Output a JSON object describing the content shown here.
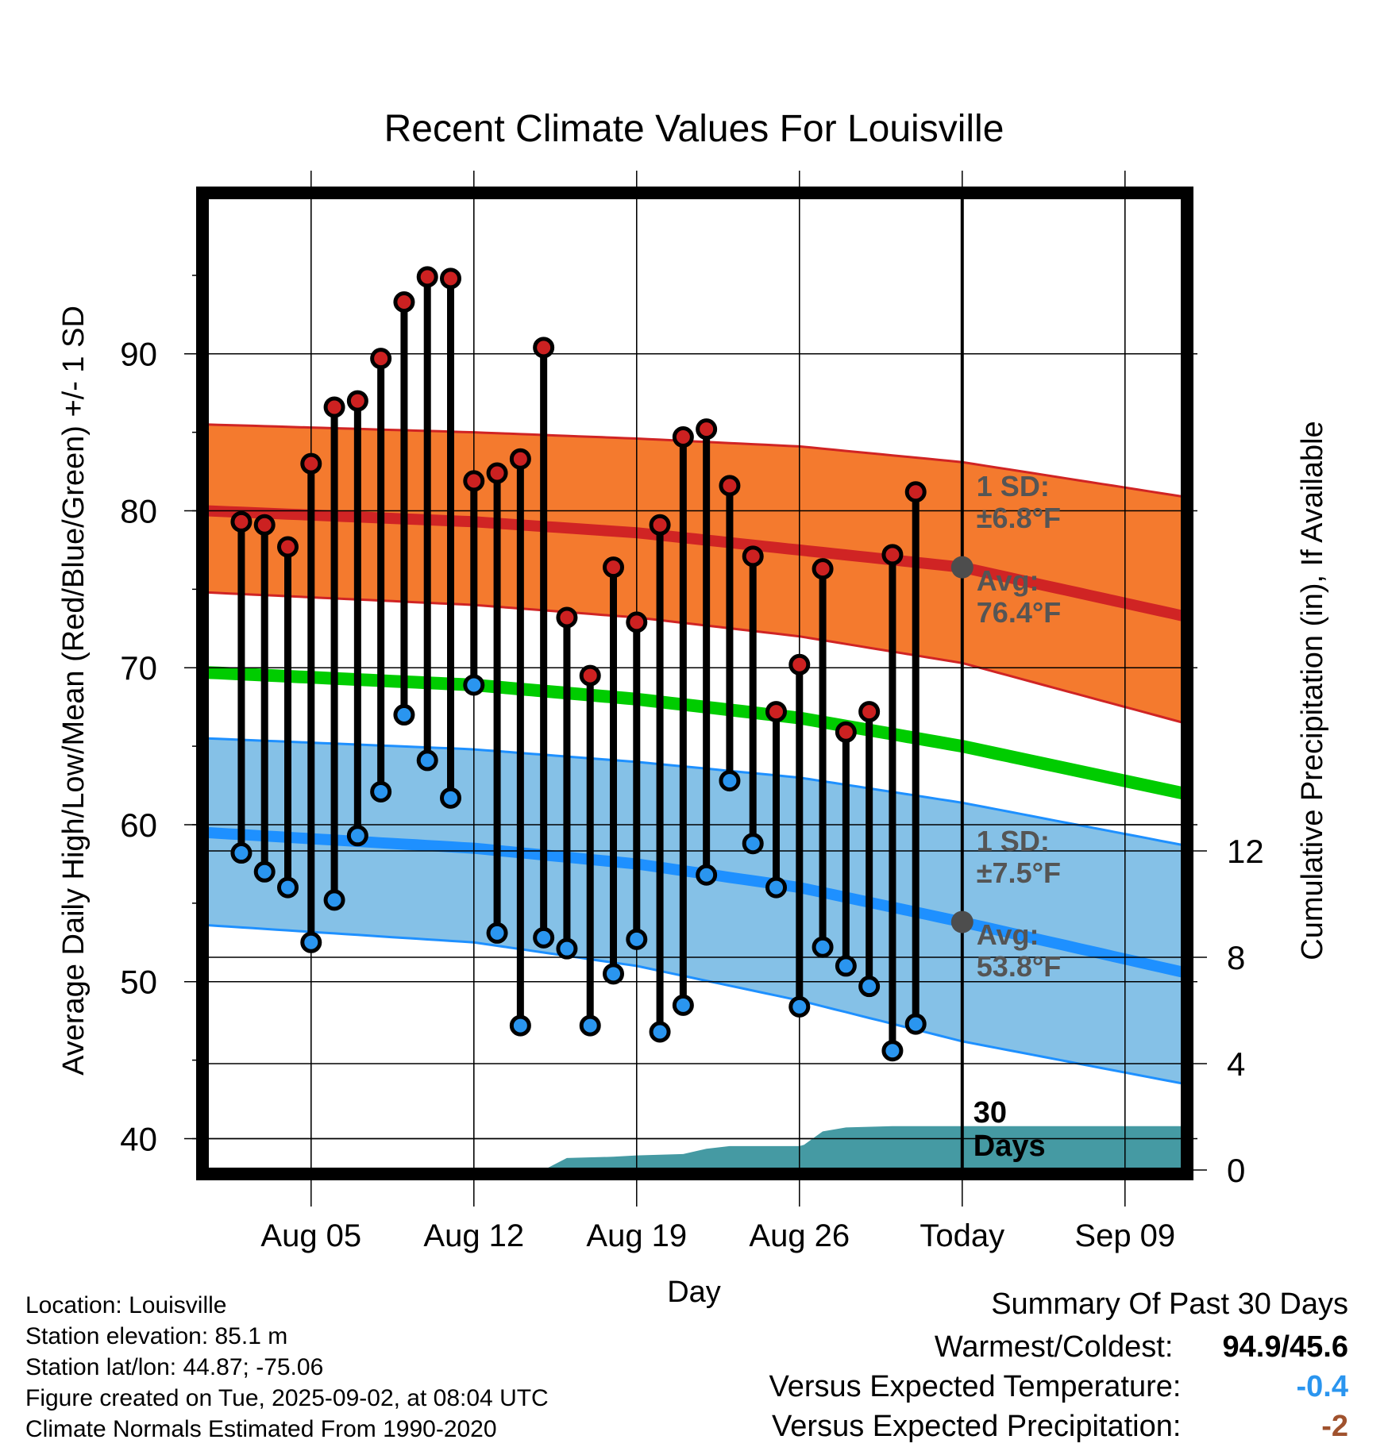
{
  "chart_data": {
    "type": "line",
    "title": "Recent Climate Values For Louisville",
    "xlabel": "Day",
    "ylabel": "Average Daily High/Low/Mean (Red/Blue/Green) +/- 1 SD",
    "y2label": "Cumulative Precipitation (in), If Available",
    "ylim": [
      38,
      100
    ],
    "y2lim": [
      0,
      36.6
    ],
    "x_range_days": [
      -32.5,
      9.5
    ],
    "x_ticks": [
      {
        "day": -28,
        "label": "Aug 05"
      },
      {
        "day": -21,
        "label": "Aug 12"
      },
      {
        "day": -14,
        "label": "Aug 19"
      },
      {
        "day": -7,
        "label": "Aug 26"
      },
      {
        "day": 0,
        "label": "Today"
      },
      {
        "day": 7,
        "label": "Sep 09"
      }
    ],
    "y_ticks": [
      40,
      50,
      60,
      70,
      80,
      90
    ],
    "y2_ticks": [
      0,
      4,
      8,
      12
    ],
    "grid": true,
    "today_line_label": [
      "30",
      "Days"
    ],
    "normals": {
      "high_mean": [
        [
          -32.5,
          80.0
        ],
        [
          -21,
          79.3
        ],
        [
          -14,
          78.6
        ],
        [
          -7,
          77.5
        ],
        [
          0,
          76.4
        ],
        [
          9.5,
          73.3
        ]
      ],
      "high_upper": [
        [
          -32.5,
          85.5
        ],
        [
          -21,
          85.0
        ],
        [
          -14,
          84.6
        ],
        [
          -7,
          84.1
        ],
        [
          0,
          83.1
        ],
        [
          9.5,
          80.9
        ]
      ],
      "high_lower": [
        [
          -32.5,
          74.8
        ],
        [
          -21,
          74.0
        ],
        [
          -14,
          73.2
        ],
        [
          -7,
          72.0
        ],
        [
          0,
          70.3
        ],
        [
          9.5,
          66.5
        ]
      ],
      "mean": [
        [
          -32.5,
          69.7
        ],
        [
          -21,
          68.9
        ],
        [
          -14,
          68.0
        ],
        [
          -7,
          66.8
        ],
        [
          0,
          65.0
        ],
        [
          9.5,
          62.0
        ]
      ],
      "low_mean": [
        [
          -32.5,
          59.5
        ],
        [
          -21,
          58.5
        ],
        [
          -14,
          57.5
        ],
        [
          -7,
          56.0
        ],
        [
          0,
          53.8
        ],
        [
          9.5,
          50.6
        ]
      ],
      "low_upper": [
        [
          -32.5,
          65.5
        ],
        [
          -21,
          64.8
        ],
        [
          -14,
          64.0
        ],
        [
          -7,
          63.0
        ],
        [
          0,
          61.4
        ],
        [
          9.5,
          58.7
        ]
      ],
      "low_lower": [
        [
          -32.5,
          53.6
        ],
        [
          -21,
          52.5
        ],
        [
          -14,
          51.0
        ],
        [
          -7,
          48.8
        ],
        [
          0,
          46.2
        ],
        [
          9.5,
          43.5
        ]
      ]
    },
    "high_sd_label": [
      "1 SD:",
      "±6.8°F"
    ],
    "high_avg_label": [
      "Avg:",
      "76.4°F"
    ],
    "low_sd_label": [
      "1 SD:",
      "±7.5°F"
    ],
    "low_avg_label": [
      "Avg:",
      "53.8°F"
    ],
    "today_high_avg": 76.4,
    "today_low_avg": 53.8,
    "daily": [
      {
        "day": -31,
        "high": 79.3,
        "low": 58.2
      },
      {
        "day": -30,
        "high": 79.1,
        "low": 57.0
      },
      {
        "day": -29,
        "high": 77.7,
        "low": 56.0
      },
      {
        "day": -28,
        "high": 83.0,
        "low": 52.5
      },
      {
        "day": -27,
        "high": 86.6,
        "low": 55.2
      },
      {
        "day": -26,
        "high": 87.0,
        "low": 59.3
      },
      {
        "day": -25,
        "high": 89.7,
        "low": 62.1
      },
      {
        "day": -24,
        "high": 93.3,
        "low": 67.0
      },
      {
        "day": -23,
        "high": 94.9,
        "low": 64.1
      },
      {
        "day": -22,
        "high": 94.8,
        "low": 61.7
      },
      {
        "day": -21,
        "high": 81.9,
        "low": 68.9
      },
      {
        "day": -20,
        "high": 82.4,
        "low": 53.1
      },
      {
        "day": -19,
        "high": 83.3,
        "low": 47.2
      },
      {
        "day": -18,
        "high": 90.4,
        "low": 52.8
      },
      {
        "day": -17,
        "high": 73.2,
        "low": 52.1
      },
      {
        "day": -16,
        "high": 69.5,
        "low": 47.2
      },
      {
        "day": -15,
        "high": 76.4,
        "low": 50.5
      },
      {
        "day": -14,
        "high": 72.9,
        "low": 52.7
      },
      {
        "day": -13,
        "high": 79.1,
        "low": 46.8
      },
      {
        "day": -12,
        "high": 84.7,
        "low": 48.5
      },
      {
        "day": -11,
        "high": 85.2,
        "low": 56.8
      },
      {
        "day": -10,
        "high": 81.6,
        "low": 62.8
      },
      {
        "day": -9,
        "high": 77.1,
        "low": 58.8
      },
      {
        "day": -8,
        "high": 67.2,
        "low": 56.0
      },
      {
        "day": -7,
        "high": 70.2,
        "low": 48.4
      },
      {
        "day": -6,
        "high": 76.3,
        "low": 52.2
      },
      {
        "day": -5,
        "high": 65.9,
        "low": 51.0
      },
      {
        "day": -4,
        "high": 67.2,
        "low": 49.7
      },
      {
        "day": -3,
        "high": 77.2,
        "low": 45.6
      },
      {
        "day": -2,
        "high": 81.2,
        "low": 47.3
      }
    ],
    "precip_cumulative": [
      [
        -32.5,
        0
      ],
      [
        -18,
        0
      ],
      [
        -17,
        0.45
      ],
      [
        -15,
        0.5
      ],
      [
        -14,
        0.55
      ],
      [
        -12,
        0.6
      ],
      [
        -11,
        0.8
      ],
      [
        -10,
        0.9
      ],
      [
        -8,
        0.9
      ],
      [
        -7,
        0.9
      ],
      [
        -6.8,
        0.95
      ],
      [
        -6,
        1.45
      ],
      [
        -5,
        1.6
      ],
      [
        -3,
        1.65
      ],
      [
        9.5,
        1.65
      ]
    ]
  },
  "colors": {
    "high": "#d02424",
    "high_band": "#f47a2e",
    "low": "#1e90ff",
    "low_band": "#85c1e7",
    "mean": "#00cc00",
    "precip": "#459aa3",
    "today_dot": "#4d4d4d",
    "high_dot": "#cc2121",
    "low_dot": "#2a95ef",
    "temp_anomaly": "#2a95ef",
    "precip_anomaly": "#a0522d"
  },
  "info": {
    "location": "Location: Louisville",
    "elevation": "Station elevation: 85.1 m",
    "latlon": "Station lat/lon: 44.87; -75.06",
    "created": "Figure created on Tue, 2025-09-02, at 08:04 UTC",
    "normals": "Climate Normals Estimated From 1990-2020"
  },
  "summary": {
    "title": "Summary Of Past 30 Days",
    "warm_cold_label": "Warmest/Coldest:",
    "warm_cold_value": "94.9/45.6",
    "temp_label": "Versus Expected Temperature:",
    "temp_value": "-0.4",
    "precip_label": "Versus Expected Precipitation:",
    "precip_value": "-2"
  }
}
